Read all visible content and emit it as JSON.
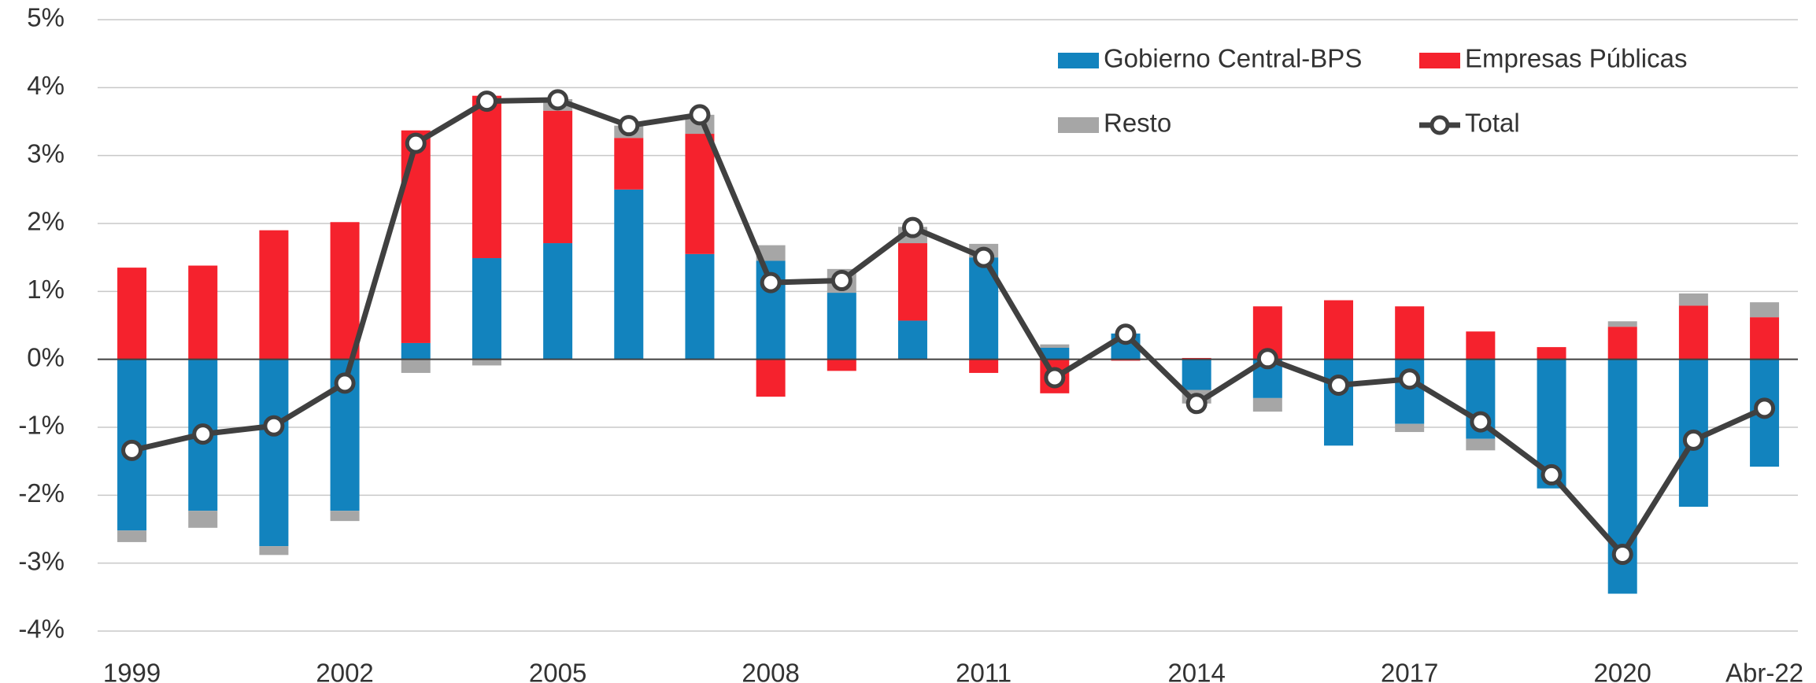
{
  "chart_data": {
    "type": "bar",
    "stacked": true,
    "categories": [
      "1999",
      null,
      null,
      "2002",
      null,
      null,
      "2005",
      null,
      null,
      "2008",
      null,
      null,
      "2011",
      null,
      null,
      "2014",
      null,
      null,
      "2017",
      null,
      null,
      "2020",
      null,
      "Abr-22"
    ],
    "series": [
      {
        "name": "Gobierno Central-BPS",
        "color": "#1283be",
        "values": [
          -2.52,
          -2.23,
          -2.75,
          -2.23,
          0.24,
          1.49,
          1.71,
          2.5,
          1.55,
          1.45,
          0.98,
          0.57,
          1.5,
          0.17,
          0.38,
          -0.45,
          -0.57,
          -1.27,
          -0.95,
          -1.17,
          -1.9,
          -3.45,
          -2.17,
          -1.58
        ]
      },
      {
        "name": "Empresas Públicas",
        "color": "#f5222d",
        "values": [
          1.35,
          1.38,
          1.9,
          2.02,
          3.13,
          2.39,
          1.95,
          0.76,
          1.77,
          -0.55,
          -0.17,
          1.14,
          -0.2,
          -0.5,
          -0.02,
          0.02,
          0.78,
          0.87,
          0.78,
          0.41,
          0.18,
          0.48,
          0.79,
          0.62
        ]
      },
      {
        "name": "Resto",
        "color": "#a6a6a6",
        "values": [
          -0.17,
          -0.25,
          -0.13,
          -0.15,
          -0.2,
          -0.09,
          0.17,
          0.18,
          0.28,
          0.23,
          0.35,
          0.24,
          0.2,
          0.05,
          0.0,
          -0.2,
          -0.2,
          0.0,
          -0.12,
          -0.17,
          0.0,
          0.08,
          0.18,
          0.22
        ]
      },
      {
        "name": "Total",
        "type": "line",
        "color": "#404040",
        "values": [
          -1.34,
          -1.1,
          -0.98,
          -0.35,
          3.18,
          3.8,
          3.82,
          3.44,
          3.6,
          1.13,
          1.16,
          1.94,
          1.5,
          -0.27,
          0.37,
          -0.65,
          0.01,
          -0.38,
          -0.29,
          -0.92,
          -1.7,
          -2.87,
          -1.19,
          -0.72
        ]
      }
    ],
    "ylim": [
      -4,
      5
    ],
    "yticks": [
      {
        "value": -4,
        "label": "-4%"
      },
      {
        "value": -3,
        "label": "-3%"
      },
      {
        "value": -2,
        "label": "-2%"
      },
      {
        "value": -1,
        "label": "-1%"
      },
      {
        "value": 0,
        "label": "0%"
      },
      {
        "value": 1,
        "label": "1%"
      },
      {
        "value": 2,
        "label": "2%"
      },
      {
        "value": 3,
        "label": "3%"
      },
      {
        "value": 4,
        "label": "4%"
      },
      {
        "value": 5,
        "label": "5%"
      }
    ],
    "grid": true,
    "legend": "top-right"
  }
}
